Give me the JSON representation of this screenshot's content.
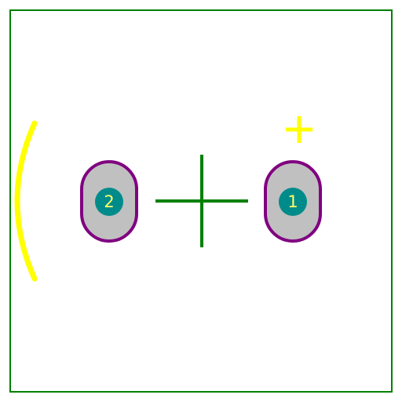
{
  "footprint": {
    "pads": [
      {
        "number": "1"
      },
      {
        "number": "2"
      }
    ],
    "polarity_mark": "+",
    "colors": {
      "outline": "#008000",
      "silkscreen": "#ffff00",
      "pad_fill": "#c0c0c0",
      "pad_outline": "#800080",
      "drill": "#008b8b",
      "pad_text": "#ffff66",
      "background": "#ffffff"
    },
    "icons": {
      "origin_marker": "crosshair-icon"
    }
  }
}
